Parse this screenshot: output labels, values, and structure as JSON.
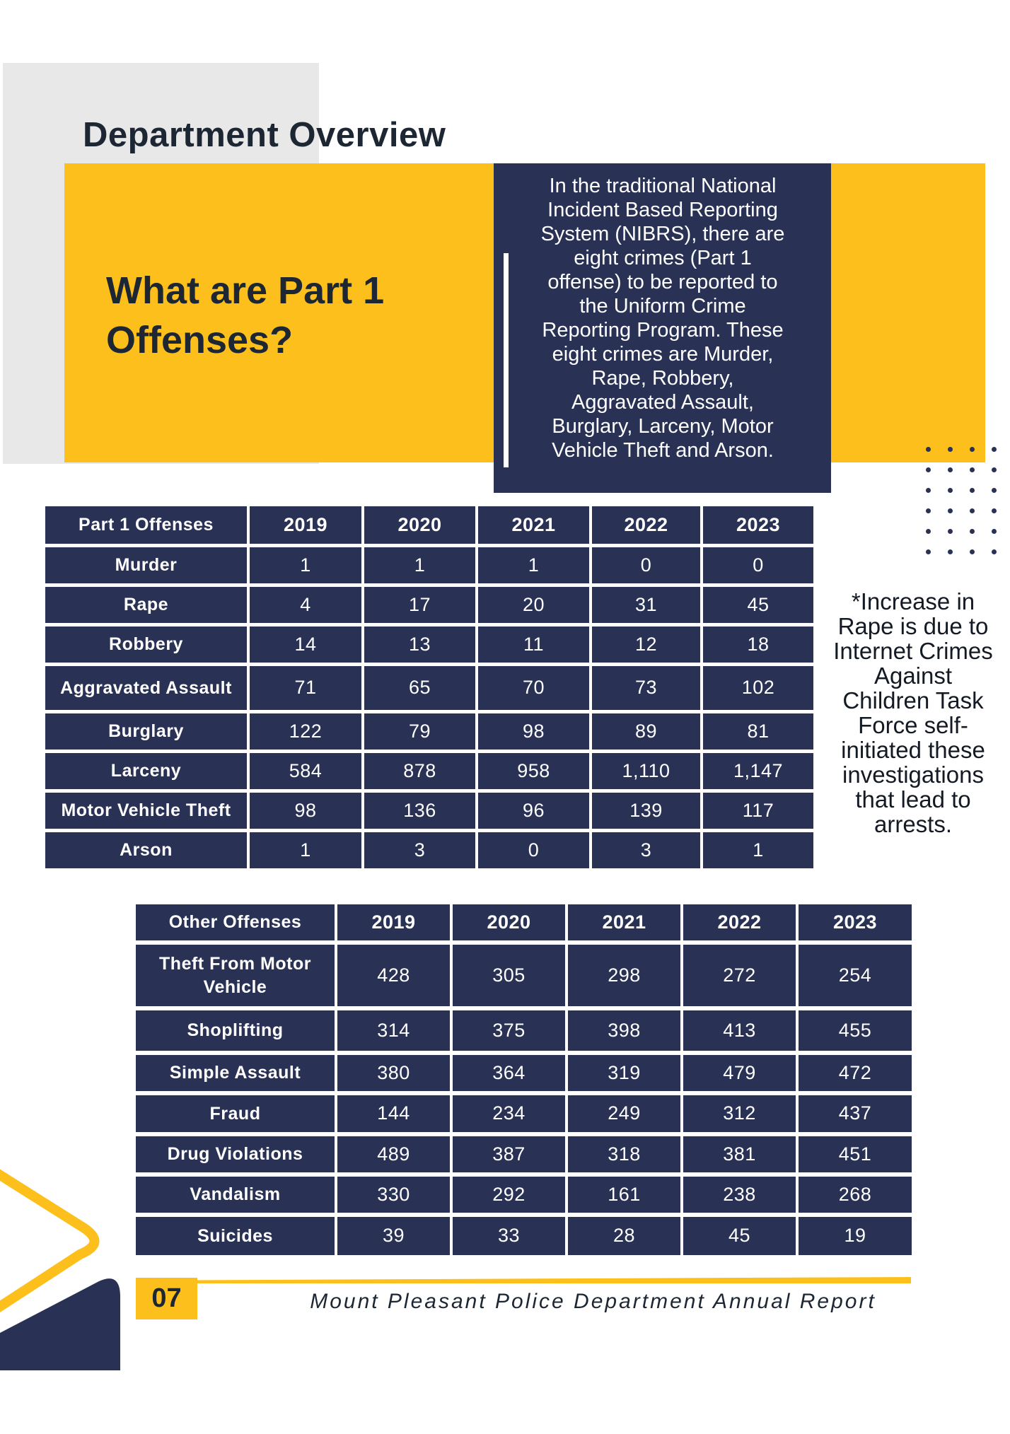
{
  "page": {
    "title": "Department Overview"
  },
  "colors": {
    "navy": "#293155",
    "yellow": "#FCBF1B",
    "gray": "#E8E8E8",
    "dark_text": "#1D2734",
    "white": "#FFFFFF"
  },
  "intro": {
    "heading_line1": "What are Part 1",
    "heading_line2": "Offenses?",
    "paragraph_lines": [
      "In the traditional National",
      "Incident Based Reporting",
      "System (NIBRS), there are",
      "eight crimes (Part 1",
      "offense) to be reported to",
      "the Uniform Crime",
      "Reporting Program. These",
      "eight crimes are Murder,",
      "Rape, Robbery,",
      "Aggravated Assault,",
      "Burglary, Larceny, Motor",
      "Vehicle Theft and Arson."
    ]
  },
  "side_note_lines": [
    "*Increase in",
    "Rape is due to",
    "Internet Crimes",
    "Against",
    "Children Task",
    "Force self-",
    "initiated these",
    "investigations",
    "that lead to",
    "arrests."
  ],
  "tables": [
    {
      "name": "part1-offenses-table",
      "header": [
        "Part 1 Offenses",
        "2019",
        "2020",
        "2021",
        "2022",
        "2023"
      ],
      "rows": [
        [
          "Murder",
          "1",
          "1",
          "1",
          "0",
          "0"
        ],
        [
          "Rape",
          "4",
          "17",
          "20",
          "31",
          "45"
        ],
        [
          "Robbery",
          "14",
          "13",
          "11",
          "12",
          "18"
        ],
        [
          "Aggravated Assault",
          "71",
          "65",
          "70",
          "73",
          "102"
        ],
        [
          "Burglary",
          "122",
          "79",
          "98",
          "89",
          "81"
        ],
        [
          "Larceny",
          "584",
          "878",
          "958",
          "1,110",
          "1,147"
        ],
        [
          "Motor Vehicle Theft",
          "98",
          "136",
          "96",
          "139",
          "117"
        ],
        [
          "Arson",
          "1",
          "3",
          "0",
          "3",
          "1"
        ]
      ]
    },
    {
      "name": "other-offenses-table",
      "header": [
        "Other Offenses",
        "2019",
        "2020",
        "2021",
        "2022",
        "2023"
      ],
      "rows": [
        [
          "Theft From Motor Vehicle",
          "428",
          "305",
          "298",
          "272",
          "254"
        ],
        [
          "Shoplifting",
          "314",
          "375",
          "398",
          "413",
          "455"
        ],
        [
          "Simple Assault",
          "380",
          "364",
          "319",
          "479",
          "472"
        ],
        [
          "Fraud",
          "144",
          "234",
          "249",
          "312",
          "437"
        ],
        [
          "Drug Violations",
          "489",
          "387",
          "318",
          "381",
          "451"
        ],
        [
          "Vandalism",
          "330",
          "292",
          "161",
          "238",
          "268"
        ],
        [
          "Suicides",
          "39",
          "33",
          "28",
          "45",
          "19"
        ]
      ]
    }
  ],
  "dots": {
    "rows": 6,
    "cols": 5
  },
  "footer": {
    "page_number": "07",
    "text": "Mount Pleasant Police Department Annual Report"
  }
}
